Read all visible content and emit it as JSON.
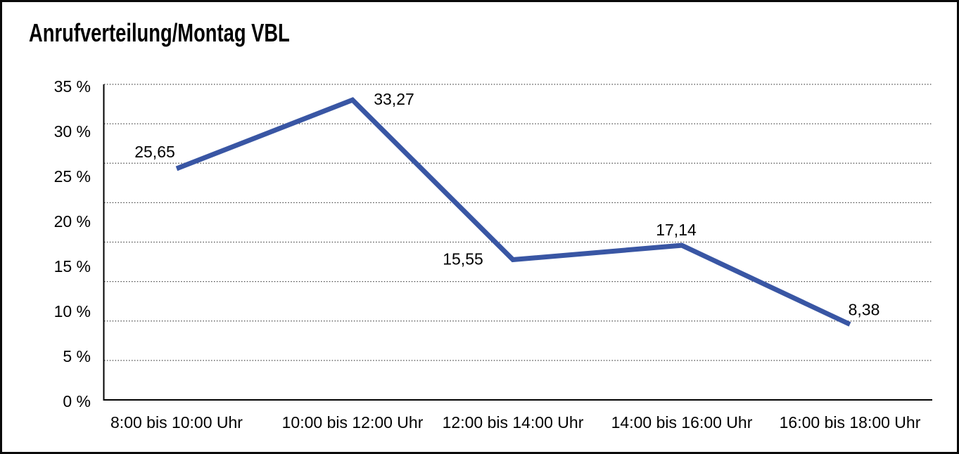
{
  "title": "Anrufverteilung/Montag VBL",
  "chart_data": {
    "type": "line",
    "title": "Anrufverteilung/Montag VBL",
    "categories": [
      "8:00 bis 10:00 Uhr",
      "10:00 bis 12:00 Uhr",
      "12:00 bis 14:00 Uhr",
      "14:00 bis 16:00 Uhr",
      "16:00 bis 18:00 Uhr"
    ],
    "values": [
      25.65,
      33.27,
      15.55,
      17.14,
      8.38
    ],
    "data_labels": [
      "25,65",
      "33,27",
      "15,55",
      "17,14",
      "8,38"
    ],
    "ytick_labels": [
      "0 %",
      "5 %",
      "10 %",
      "15 %",
      "20 %",
      "25 %",
      "30 %",
      "35 %"
    ],
    "ylim": [
      0,
      35
    ],
    "y_tick_step": 5,
    "xlabel": "",
    "ylabel": "",
    "grid": "horizontal-dotted",
    "gridline_intervals": 8,
    "legend_position": "none",
    "colors": {
      "line": "#3956A4",
      "grid": "#4a4a4a",
      "axis": "#000000",
      "text": "#000000",
      "background": "#ffffff",
      "frame": "#0a0a0a"
    }
  }
}
